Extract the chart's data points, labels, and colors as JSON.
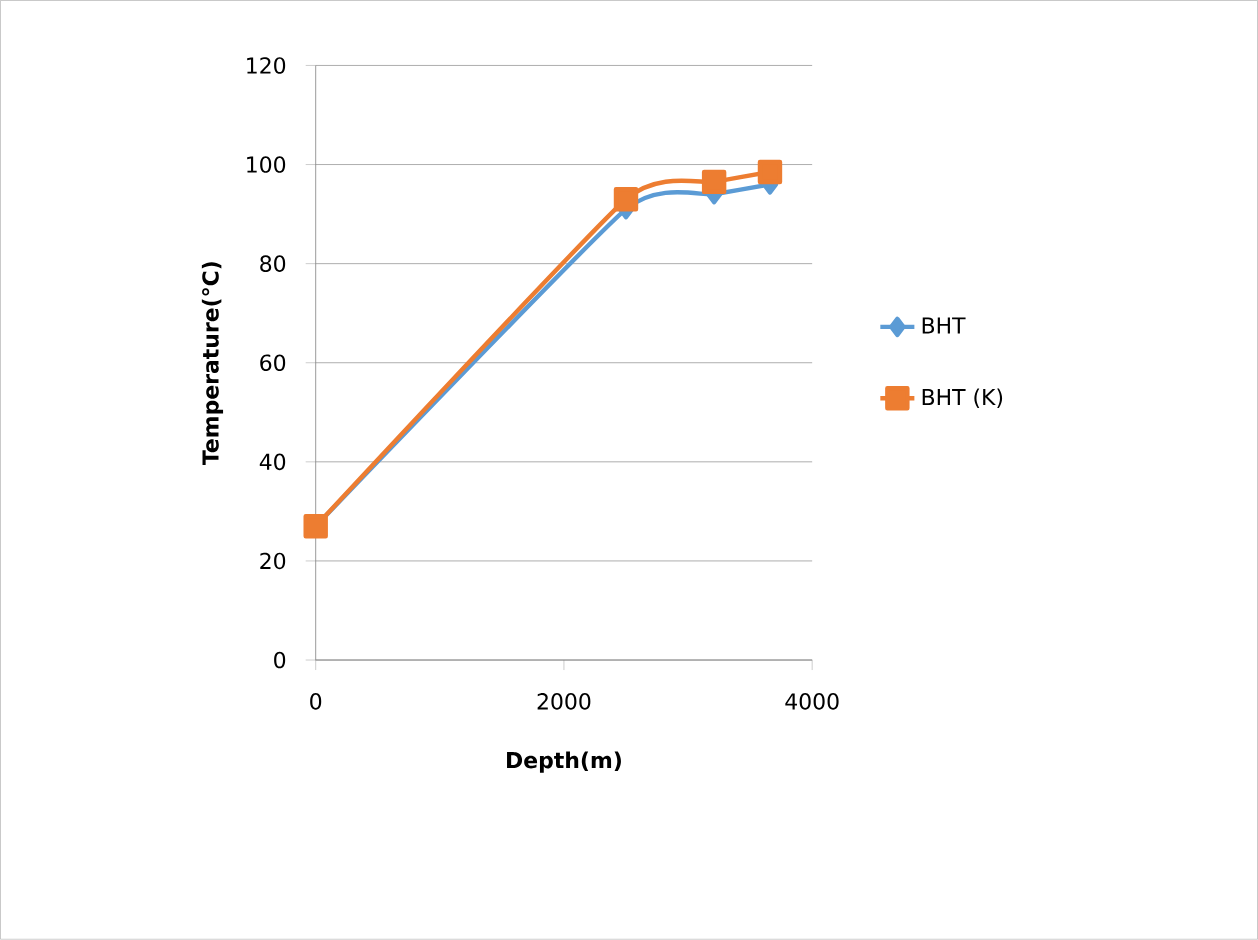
{
  "chart_data": {
    "type": "line",
    "xlabel": "Depth(m)",
    "ylabel": "Temperature(°C)",
    "xlim": [
      0,
      4000
    ],
    "xticks": [
      0,
      2000,
      4000
    ],
    "ylim": [
      0,
      120
    ],
    "yticks": [
      0,
      20,
      40,
      60,
      80,
      100,
      120
    ],
    "grid": "y",
    "legend": "right",
    "series": [
      {
        "name": "BHT",
        "color": "#5b9bd5",
        "marker": "diamond",
        "x": [
          0,
          2500,
          3210,
          3660
        ],
        "values": [
          27,
          91,
          94,
          96
        ]
      },
      {
        "name": "BHT (K)",
        "color": "#ed7d31",
        "marker": "square",
        "x": [
          0,
          2500,
          3210,
          3660
        ],
        "values": [
          27,
          93,
          96.5,
          98.5
        ]
      }
    ]
  }
}
